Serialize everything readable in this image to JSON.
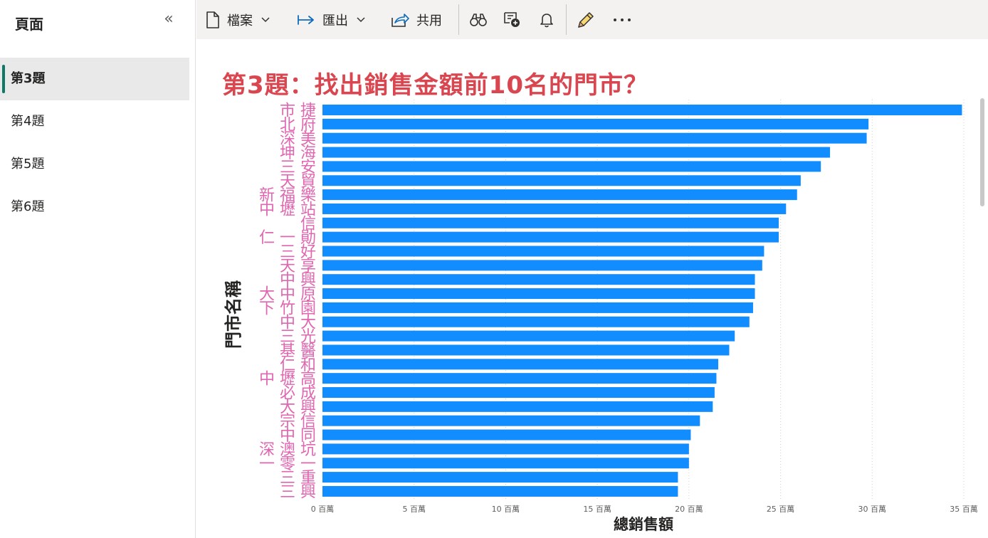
{
  "sidebar": {
    "title": "頁面",
    "collapse_icon": "double-chevron-left-icon",
    "pages": [
      {
        "label": "第3題",
        "active": true
      },
      {
        "label": "第4題",
        "active": false
      },
      {
        "label": "第5題",
        "active": false
      },
      {
        "label": "第6題",
        "active": false
      }
    ]
  },
  "toolbar": {
    "file_label": "檔案",
    "export_label": "匯出",
    "share_label": "共用",
    "icons": [
      "file-icon",
      "export-arrow-icon",
      "share-icon",
      "binoculars-icon",
      "comment-add-icon",
      "bell-icon",
      "pencil-icon",
      "more-icon"
    ]
  },
  "report": {
    "title": "第3題：找出銷售金額前10名的門市？"
  },
  "chart_data": {
    "type": "bar",
    "orientation": "horizontal",
    "ylabel": "門市名稱",
    "xlabel": "總銷售額",
    "xlim": [
      0,
      35
    ],
    "x_unit": "百萬",
    "x_ticks": [
      "0 百萬",
      "5 百萬",
      "10 百萬",
      "15 百萬",
      "20 百萬",
      "25 百萬",
      "30 百萬",
      "35 百萬"
    ],
    "bar_color": "#118dff",
    "label_color": "#e066b0",
    "values": [
      34.9,
      29.8,
      29.7,
      27.7,
      27.2,
      26.1,
      25.9,
      25.3,
      24.9,
      24.9,
      24.1,
      24.0,
      23.6,
      23.6,
      23.5,
      23.3,
      22.5,
      22.2,
      21.6,
      21.5,
      21.4,
      21.3,
      20.6,
      20.1,
      20.0,
      20.0,
      19.4,
      19.4
    ],
    "categories": [
      "市 捷",
      "北 府",
      "深 美",
      "坤 海",
      "三 安",
      "天 貿",
      "新 福 樂",
      "中 壢 站",
      "信",
      "仁 一 勛",
      "三 好",
      "天 享",
      "中 興",
      "大 中 原",
      "下 竹 園",
      "中 大",
      "三 光",
      "基 醫",
      "仁 和",
      "中 壢 高",
      "必 成",
      "大 興",
      "宗 信",
      "中 同",
      "深 澳 坑",
      "一 零 一",
      "三 重",
      "三 興"
    ]
  }
}
